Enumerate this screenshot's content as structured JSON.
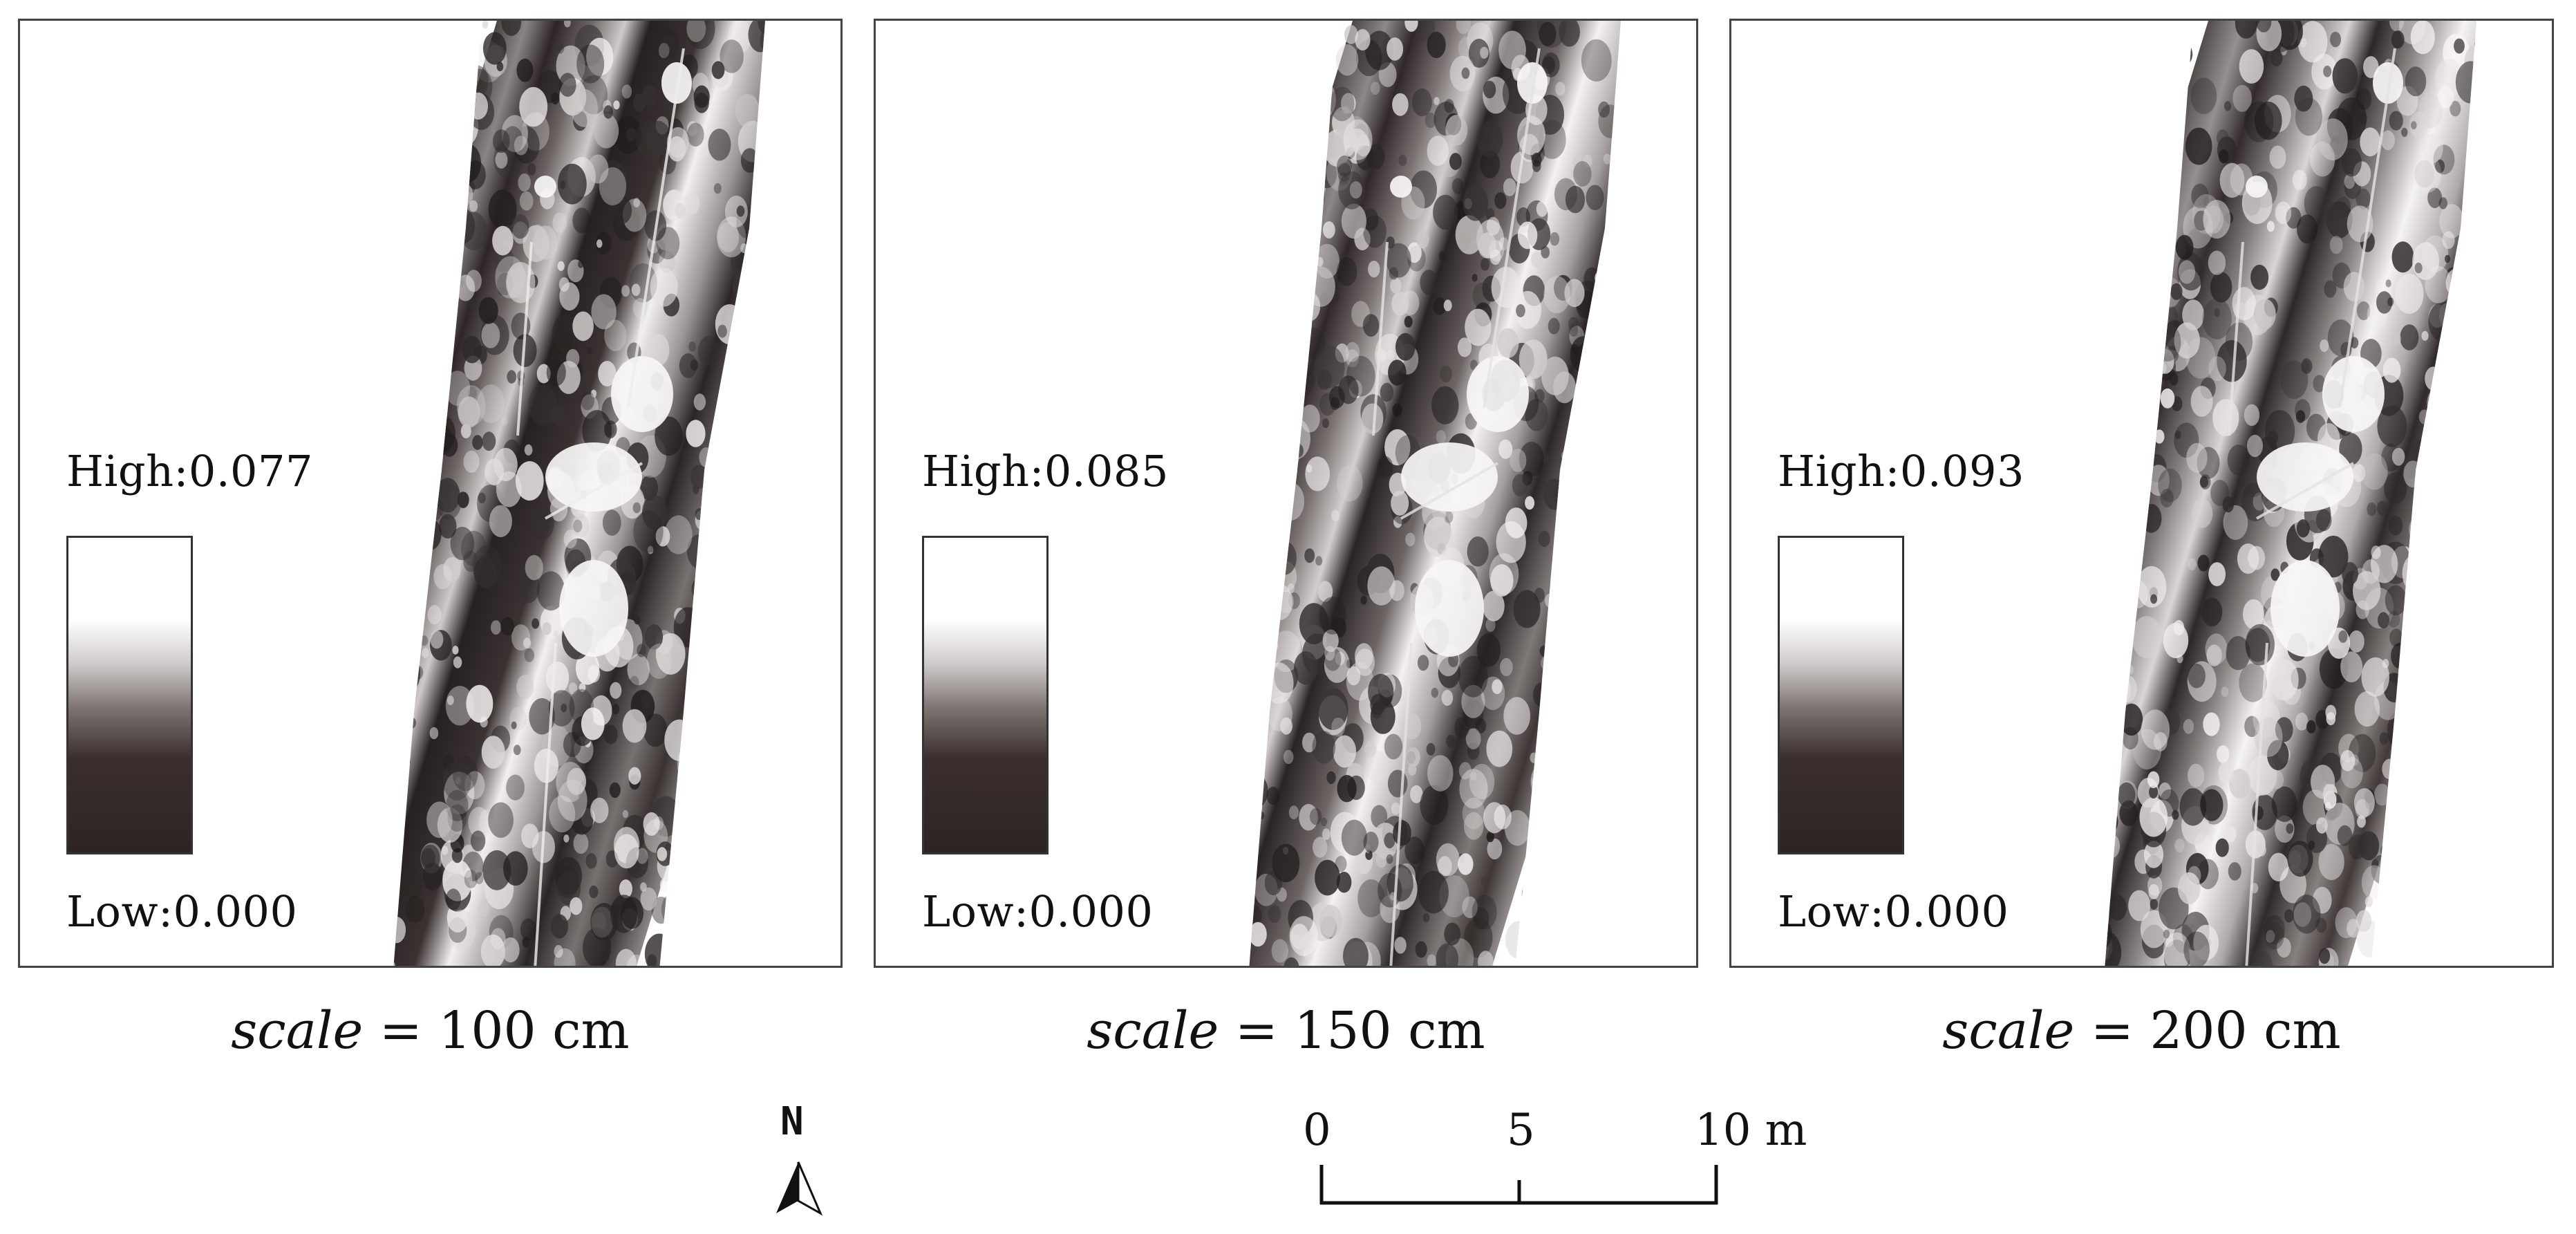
{
  "panels": [
    {
      "legend_high": "High:0.077",
      "legend_low": "Low:0.000",
      "caption_var": "scale",
      "caption_value": "= 100 cm",
      "stripe_seed": 3
    },
    {
      "legend_high": "High:0.085",
      "legend_low": "Low:0.000",
      "caption_var": "scale",
      "caption_value": "= 150 cm",
      "stripe_seed": 7
    },
    {
      "legend_high": "High:0.093",
      "legend_low": "Low:0.000",
      "caption_var": "scale",
      "caption_value": "= 200 cm",
      "stripe_seed": 11
    }
  ],
  "north_arrow": {
    "label": "N"
  },
  "scale_bar": {
    "ticks": [
      "0",
      "5",
      "10 m"
    ]
  },
  "colors": {
    "ramp_high": "#ffffff",
    "ramp_low": "#2e2423",
    "frame": "#444444"
  }
}
